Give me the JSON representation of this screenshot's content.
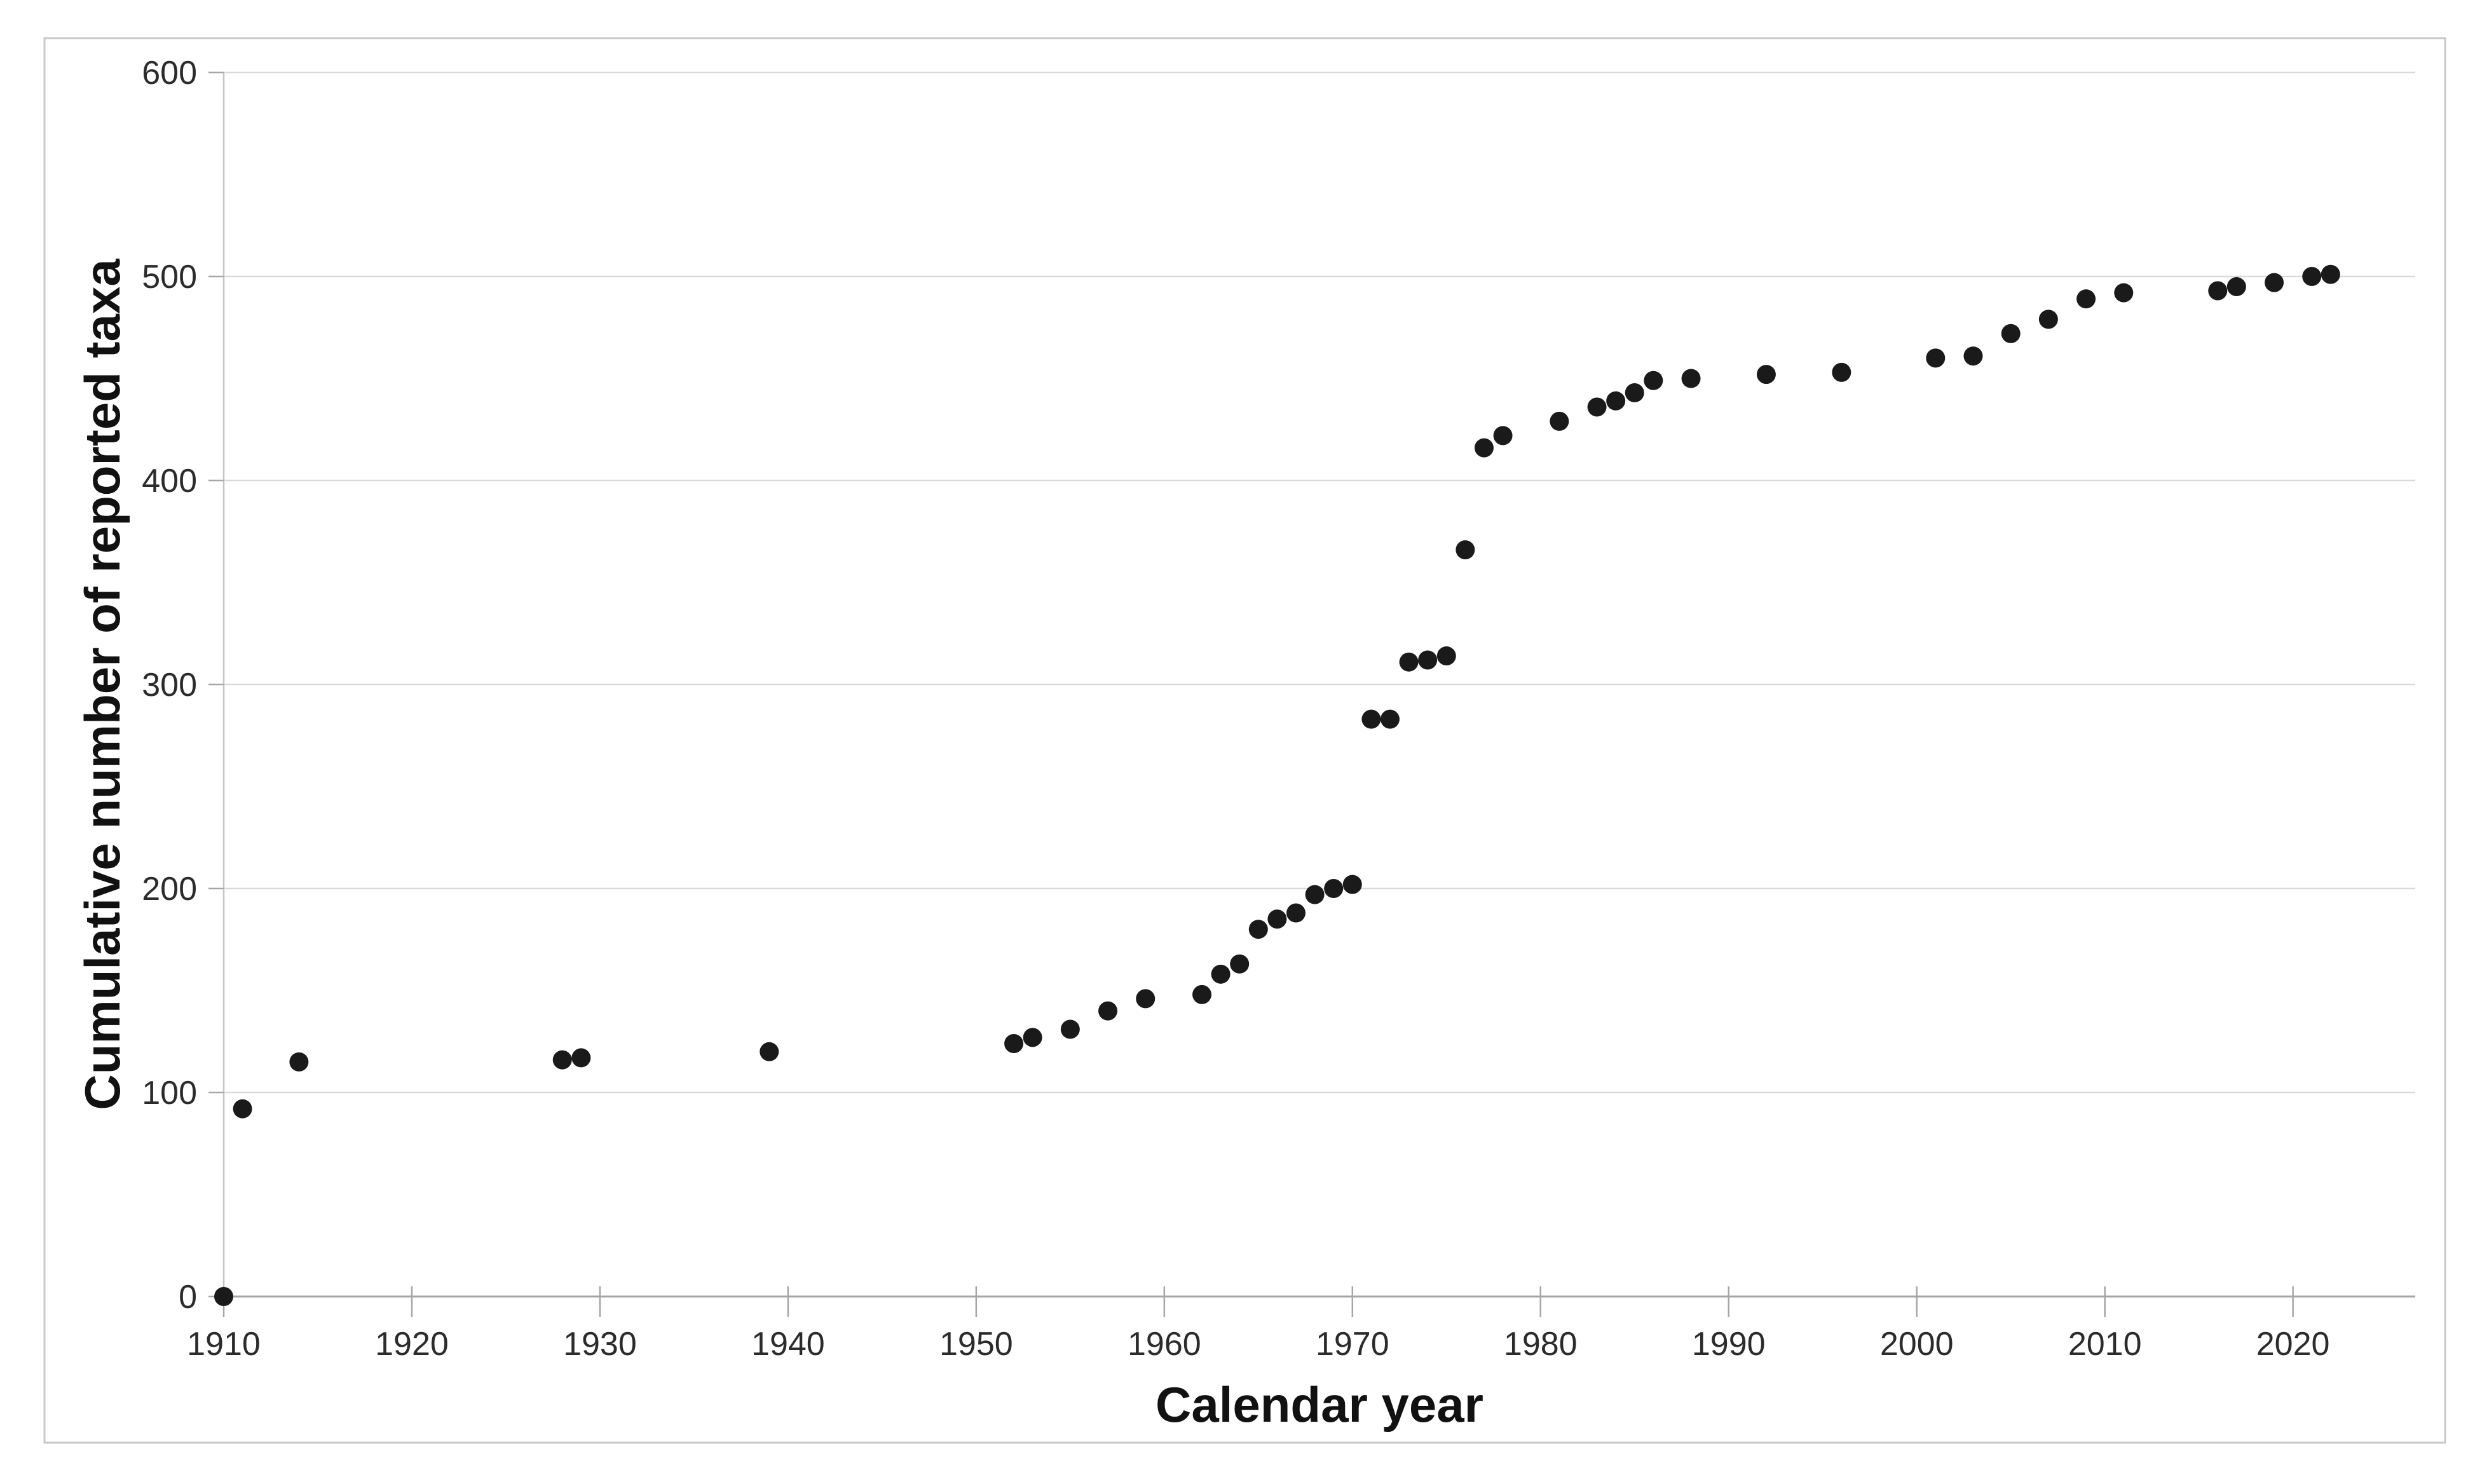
{
  "figure": {
    "background_color": "#ffffff",
    "border_color": "#c9c9c9"
  },
  "chart_data": {
    "type": "scatter",
    "title": "",
    "xlabel": "Calendar year",
    "ylabel": "Cumulative number of reported taxa",
    "xlim": [
      1910,
      2026.5
    ],
    "ylim": [
      0,
      600
    ],
    "x_ticks": [
      1910,
      1920,
      1930,
      1940,
      1950,
      1960,
      1970,
      1980,
      1990,
      2000,
      2010,
      2020
    ],
    "y_ticks": [
      0,
      100,
      200,
      300,
      400,
      500,
      600
    ],
    "grid": "horizontal",
    "legend": "none",
    "marker_color": "#1a1a1a",
    "grid_color": "#d9d9d9",
    "axis_color": "#a6a6a6",
    "y_axis_line_color": "#c6c6c6",
    "tick_label_color": "#2b2b2b",
    "points": [
      [
        1910,
        0
      ],
      [
        1911,
        92
      ],
      [
        1914,
        115
      ],
      [
        1928,
        116
      ],
      [
        1929,
        117
      ],
      [
        1939,
        120
      ],
      [
        1952,
        124
      ],
      [
        1953,
        127
      ],
      [
        1955,
        131
      ],
      [
        1957,
        140
      ],
      [
        1959,
        146
      ],
      [
        1962,
        148
      ],
      [
        1963,
        158
      ],
      [
        1964,
        163
      ],
      [
        1965,
        180
      ],
      [
        1966,
        185
      ],
      [
        1967,
        188
      ],
      [
        1968,
        197
      ],
      [
        1969,
        200
      ],
      [
        1970,
        202
      ],
      [
        1971,
        283
      ],
      [
        1972,
        283
      ],
      [
        1973,
        311
      ],
      [
        1974,
        312
      ],
      [
        1975,
        314
      ],
      [
        1976,
        366
      ],
      [
        1977,
        416
      ],
      [
        1978,
        422
      ],
      [
        1981,
        429
      ],
      [
        1983,
        436
      ],
      [
        1984,
        439
      ],
      [
        1985,
        443
      ],
      [
        1986,
        449
      ],
      [
        1988,
        450
      ],
      [
        1992,
        452
      ],
      [
        1996,
        453
      ],
      [
        2001,
        460
      ],
      [
        2003,
        461
      ],
      [
        2005,
        472
      ],
      [
        2007,
        479
      ],
      [
        2009,
        489
      ],
      [
        2011,
        492
      ],
      [
        2016,
        493
      ],
      [
        2017,
        495
      ],
      [
        2019,
        497
      ],
      [
        2021,
        500
      ],
      [
        2022,
        501
      ]
    ]
  }
}
